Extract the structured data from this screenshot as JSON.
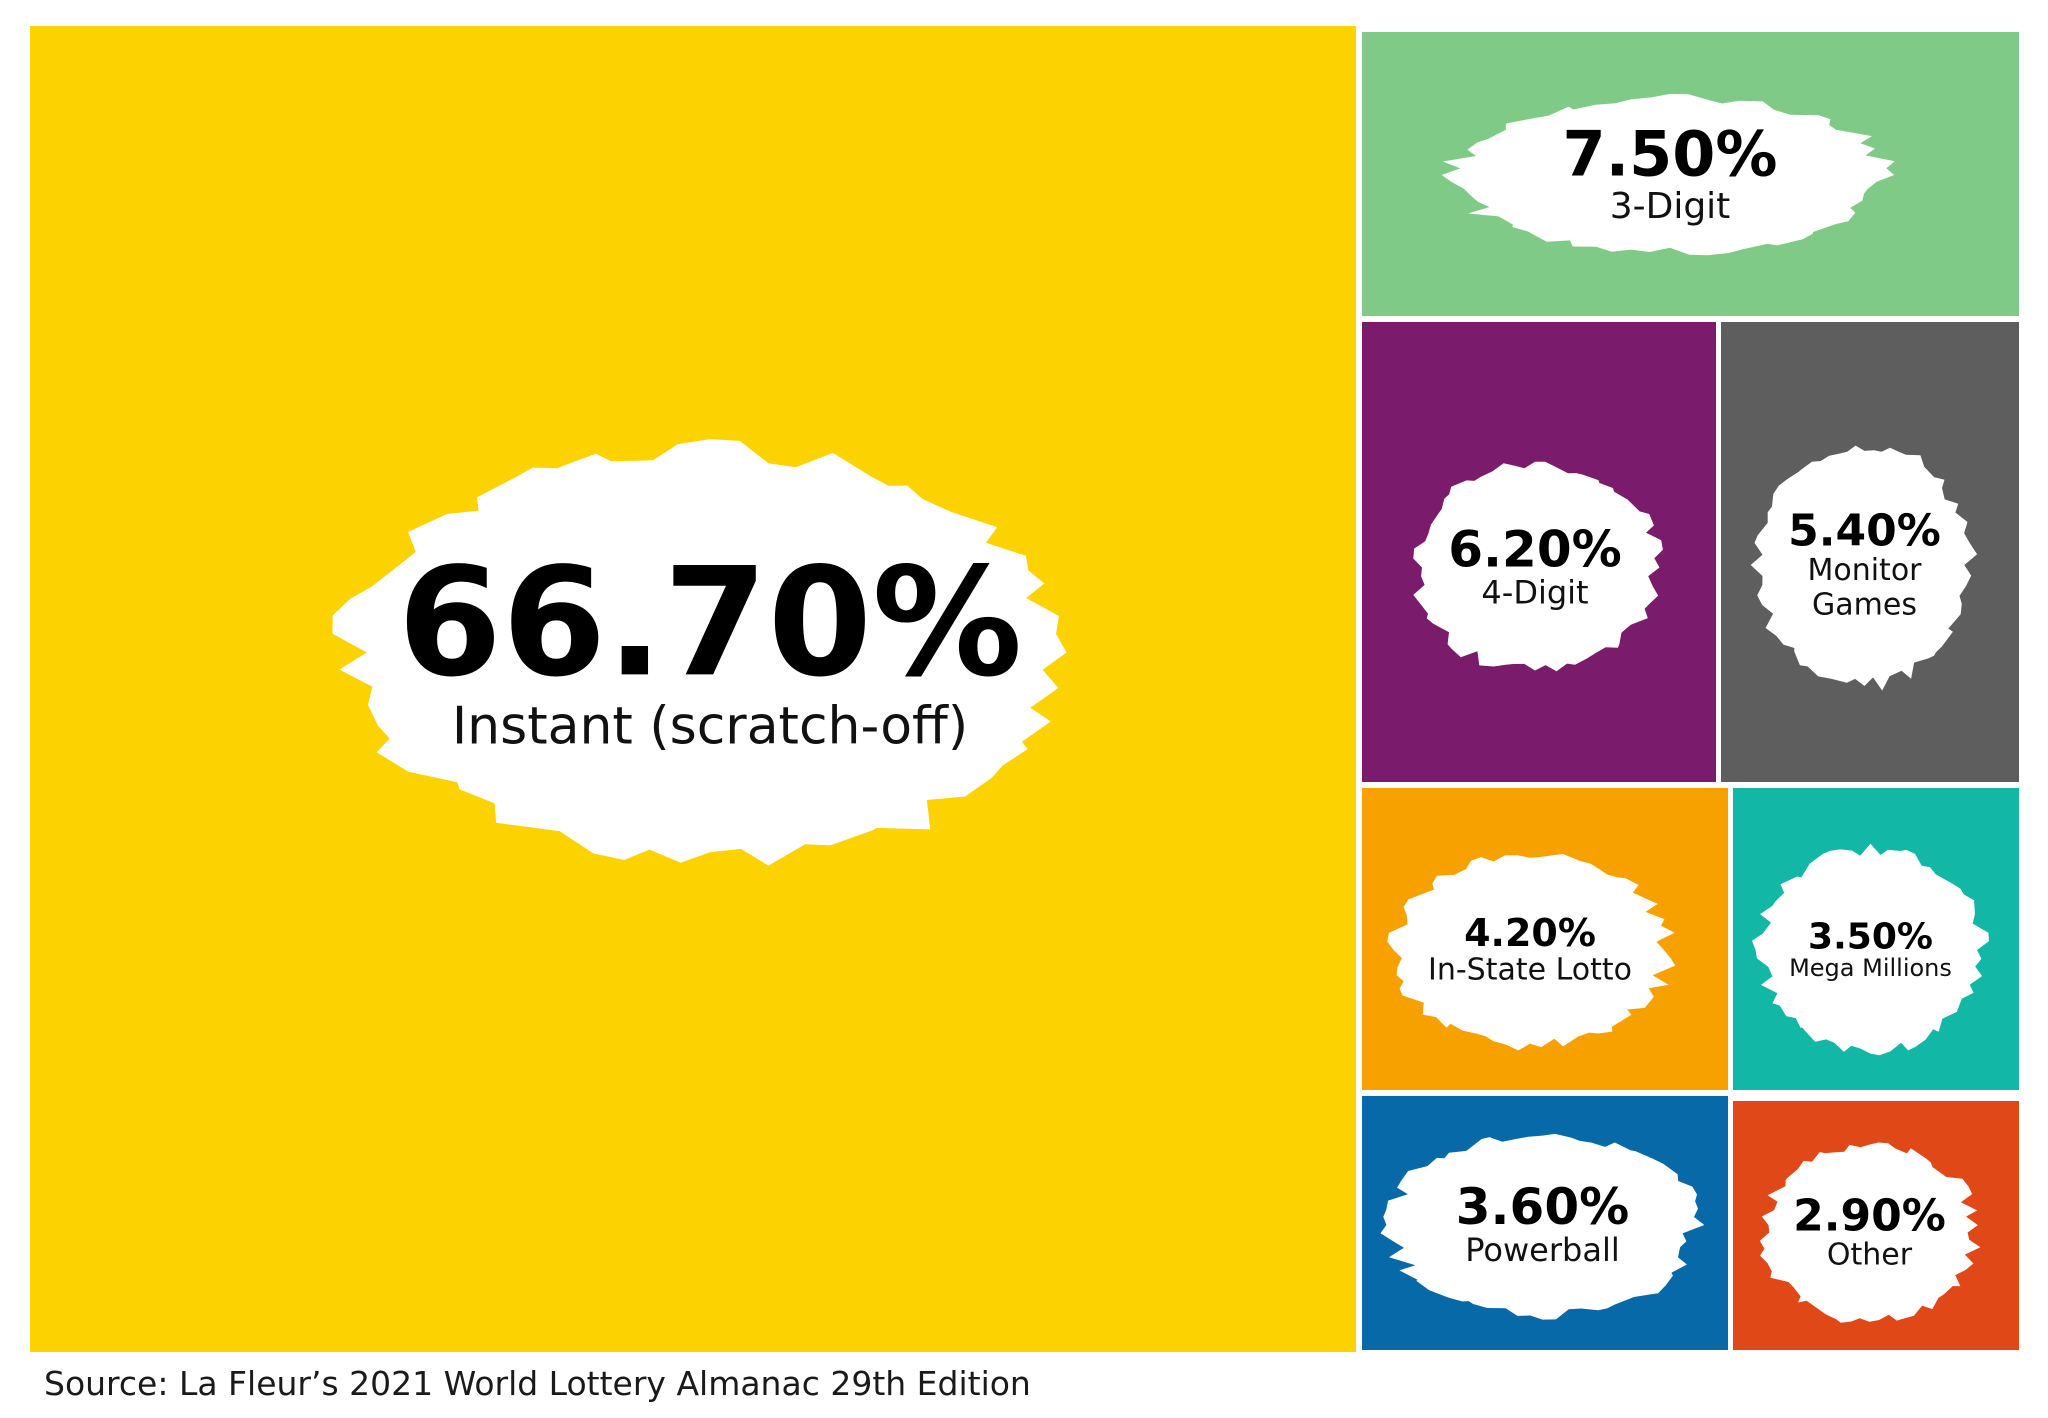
{
  "chart_data": {
    "type": "treemap",
    "unit": "%",
    "items": [
      {
        "label": "Instant (scratch-off)",
        "value_label": "66.70%",
        "value": 66.7,
        "color": "#FCD200"
      },
      {
        "label": "3-Digit",
        "value_label": "7.50%",
        "value": 7.5,
        "color": "#7ECA86"
      },
      {
        "label": "4-Digit",
        "value_label": "6.20%",
        "value": 6.2,
        "color": "#7A1C6B"
      },
      {
        "label": "Monitor Games",
        "value_label": "5.40%",
        "value": 5.4,
        "color": "#5E5E5E"
      },
      {
        "label": "In-State Lotto",
        "value_label": "4.20%",
        "value": 4.2,
        "color": "#F7A100"
      },
      {
        "label": "Mega Millions",
        "value_label": "3.50%",
        "value": 3.5,
        "color": "#12B7A5"
      },
      {
        "label": "Powerball",
        "value_label": "3.60%",
        "value": 3.6,
        "color": "#0769A8"
      },
      {
        "label": "Other",
        "value_label": "2.90%",
        "value": 2.9,
        "color": "#E14818"
      }
    ]
  },
  "source": "Source: La Fleur’s 2021 World Lottery Almanac 29th Edition"
}
